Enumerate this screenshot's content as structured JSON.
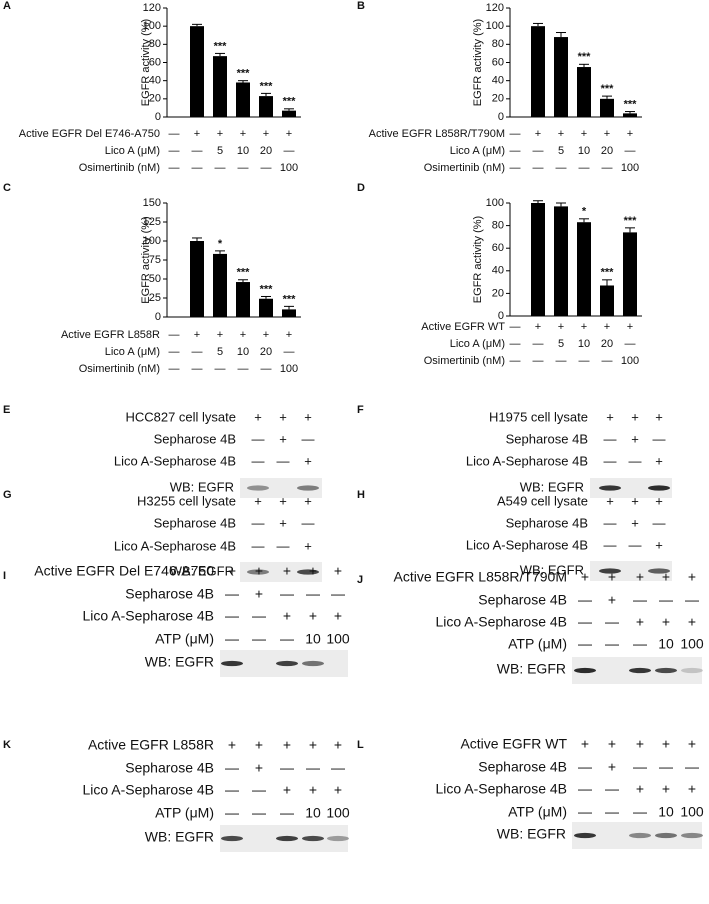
{
  "chart_data": [
    {
      "type": "bar",
      "panel": "A",
      "ylabel": "EGFR activity (%)",
      "values": [
        null,
        100,
        67,
        38,
        23,
        7
      ],
      "errors": [
        null,
        2,
        3,
        2,
        3,
        2
      ],
      "significance": [
        null,
        null,
        "***",
        "***",
        "***",
        "***"
      ],
      "color": "#000000",
      "ylim": [
        0,
        120
      ],
      "yticks": [
        0,
        20,
        40,
        60,
        80,
        100,
        120
      ],
      "conditions": [
        {
          "label": "Active EGFR Del E746-A750",
          "cells": [
            "—",
            "+",
            "+",
            "+",
            "+",
            "+"
          ]
        },
        {
          "label": "Lico A (μM)",
          "cells": [
            "—",
            "—",
            "5",
            "10",
            "20",
            "—"
          ]
        },
        {
          "label": "Osimertinib (nM)",
          "cells": [
            "—",
            "—",
            "—",
            "—",
            "—",
            "100"
          ]
        }
      ]
    },
    {
      "type": "bar",
      "panel": "B",
      "ylabel": "EGFR activity (%)",
      "values": [
        null,
        100,
        88,
        55,
        20,
        4
      ],
      "errors": [
        null,
        3,
        5,
        3,
        3,
        2
      ],
      "significance": [
        null,
        null,
        null,
        "***",
        "***",
        "***"
      ],
      "color": "#000000",
      "ylim": [
        0,
        120
      ],
      "yticks": [
        0,
        20,
        40,
        60,
        80,
        100,
        120
      ],
      "conditions": [
        {
          "label": "Active EGFR L858R/T790M",
          "cells": [
            "—",
            "+",
            "+",
            "+",
            "+",
            "+"
          ]
        },
        {
          "label": "Lico A (μM)",
          "cells": [
            "—",
            "—",
            "5",
            "10",
            "20",
            "—"
          ]
        },
        {
          "label": "Osimertinib (nM)",
          "cells": [
            "—",
            "—",
            "—",
            "—",
            "—",
            "100"
          ]
        }
      ]
    },
    {
      "type": "bar",
      "panel": "C",
      "ylabel": "EGFR activity (%)",
      "values": [
        null,
        100,
        83,
        46,
        24,
        10
      ],
      "errors": [
        null,
        4,
        4,
        3,
        3,
        4
      ],
      "significance": [
        null,
        null,
        "*",
        "***",
        "***",
        "***"
      ],
      "color": "#000000",
      "ylim": [
        0,
        150
      ],
      "yticks": [
        0,
        25,
        50,
        75,
        100,
        125,
        150
      ],
      "conditions": [
        {
          "label": "Active EGFR L858R",
          "cells": [
            "—",
            "+",
            "+",
            "+",
            "+",
            "+"
          ]
        },
        {
          "label": "Lico A (μM)",
          "cells": [
            "—",
            "—",
            "5",
            "10",
            "20",
            "—"
          ]
        },
        {
          "label": "Osimertinib (nM)",
          "cells": [
            "—",
            "—",
            "—",
            "—",
            "—",
            "100"
          ]
        }
      ]
    },
    {
      "type": "bar",
      "panel": "D",
      "ylabel": "EGFR activity (%)",
      "values": [
        null,
        100,
        97,
        83,
        27,
        74
      ],
      "errors": [
        null,
        2,
        3,
        3,
        5,
        4
      ],
      "significance": [
        null,
        null,
        null,
        "*",
        "***",
        "***"
      ],
      "color": "#000000",
      "ylim": [
        0,
        100
      ],
      "yticks": [
        0,
        20,
        40,
        60,
        80,
        100
      ],
      "conditions": [
        {
          "label": "Active EGFR WT",
          "cells": [
            "—",
            "+",
            "+",
            "+",
            "+",
            "+"
          ]
        },
        {
          "label": "Lico A (μM)",
          "cells": [
            "—",
            "—",
            "5",
            "10",
            "20",
            "—"
          ]
        },
        {
          "label": "Osimertinib (nM)",
          "cells": [
            "—",
            "—",
            "—",
            "—",
            "—",
            "100"
          ]
        }
      ]
    }
  ],
  "blots": [
    {
      "panel": "E",
      "rows": [
        {
          "label": "HCC827 cell lysate",
          "cells": [
            "+",
            "+",
            "+"
          ]
        },
        {
          "label": "Sepharose 4B",
          "cells": [
            "—",
            "+",
            "—"
          ]
        },
        {
          "label": "Lico A-Sepharose 4B",
          "cells": [
            "—",
            "—",
            "+"
          ]
        }
      ],
      "wb": "WB: EGFR"
    },
    {
      "panel": "F",
      "rows": [
        {
          "label": "H1975 cell lysate",
          "cells": [
            "+",
            "+",
            "+"
          ]
        },
        {
          "label": "Sepharose 4B",
          "cells": [
            "—",
            "+",
            "—"
          ]
        },
        {
          "label": "Lico A-Sepharose 4B",
          "cells": [
            "—",
            "—",
            "+"
          ]
        }
      ],
      "wb": "WB: EGFR"
    },
    {
      "panel": "G",
      "rows": [
        {
          "label": "H3255 cell lysate",
          "cells": [
            "+",
            "+",
            "+"
          ]
        },
        {
          "label": "Sepharose 4B",
          "cells": [
            "—",
            "+",
            "—"
          ]
        },
        {
          "label": "Lico A-Sepharose 4B",
          "cells": [
            "—",
            "—",
            "+"
          ]
        }
      ],
      "wb": "WB: EGFR"
    },
    {
      "panel": "H",
      "rows": [
        {
          "label": "A549 cell lysate",
          "cells": [
            "+",
            "+",
            "+"
          ]
        },
        {
          "label": "Sepharose 4B",
          "cells": [
            "—",
            "+",
            "—"
          ]
        },
        {
          "label": "Lico A-Sepharose 4B",
          "cells": [
            "—",
            "—",
            "+"
          ]
        }
      ],
      "wb": "WB: EGFR"
    },
    {
      "panel": "I",
      "rows": [
        {
          "label": "Active EGFR Del E746-A750",
          "cells": [
            "+",
            "+",
            "+",
            "+",
            "+"
          ]
        },
        {
          "label": "Sepharose 4B",
          "cells": [
            "—",
            "+",
            "—",
            "—",
            "—"
          ]
        },
        {
          "label": "Lico A-Sepharose 4B",
          "cells": [
            "—",
            "—",
            "+",
            "+",
            "+"
          ]
        },
        {
          "label": "ATP (μM)",
          "cells": [
            "—",
            "—",
            "—",
            "10",
            "100"
          ]
        }
      ],
      "wb": "WB:  EGFR"
    },
    {
      "panel": "J",
      "rows": [
        {
          "label": "Active EGFR L858R/T790M",
          "cells": [
            "+",
            "+",
            "+",
            "+",
            "+"
          ]
        },
        {
          "label": "Sepharose 4B",
          "cells": [
            "—",
            "+",
            "—",
            "—",
            "—"
          ]
        },
        {
          "label": "Lico A-Sepharose 4B",
          "cells": [
            "—",
            "—",
            "+",
            "+",
            "+"
          ]
        },
        {
          "label": "ATP (μM)",
          "cells": [
            "—",
            "—",
            "—",
            "10",
            "100"
          ]
        }
      ],
      "wb": "WB:  EGFR"
    },
    {
      "panel": "K",
      "rows": [
        {
          "label": "Active EGFR L858R",
          "cells": [
            "+",
            "+",
            "+",
            "+",
            "+"
          ]
        },
        {
          "label": "Sepharose 4B",
          "cells": [
            "—",
            "+",
            "—",
            "—",
            "—"
          ]
        },
        {
          "label": "Lico A-Sepharose 4B",
          "cells": [
            "—",
            "—",
            "+",
            "+",
            "+"
          ]
        },
        {
          "label": "ATP (μM)",
          "cells": [
            "—",
            "—",
            "—",
            "10",
            "100"
          ]
        }
      ],
      "wb": "WB:  EGFR"
    },
    {
      "panel": "L",
      "rows": [
        {
          "label": "Active EGFR WT",
          "cells": [
            "+",
            "+",
            "+",
            "+",
            "+"
          ]
        },
        {
          "label": "Sepharose 4B",
          "cells": [
            "—",
            "+",
            "—",
            "—",
            "—"
          ]
        },
        {
          "label": "Lico A-Sepharose 4B",
          "cells": [
            "—",
            "—",
            "+",
            "+",
            "+"
          ]
        },
        {
          "label": "ATP (μM)",
          "cells": [
            "—",
            "—",
            "—",
            "10",
            "100"
          ]
        }
      ],
      "wb": "WB:  EGFR"
    }
  ]
}
